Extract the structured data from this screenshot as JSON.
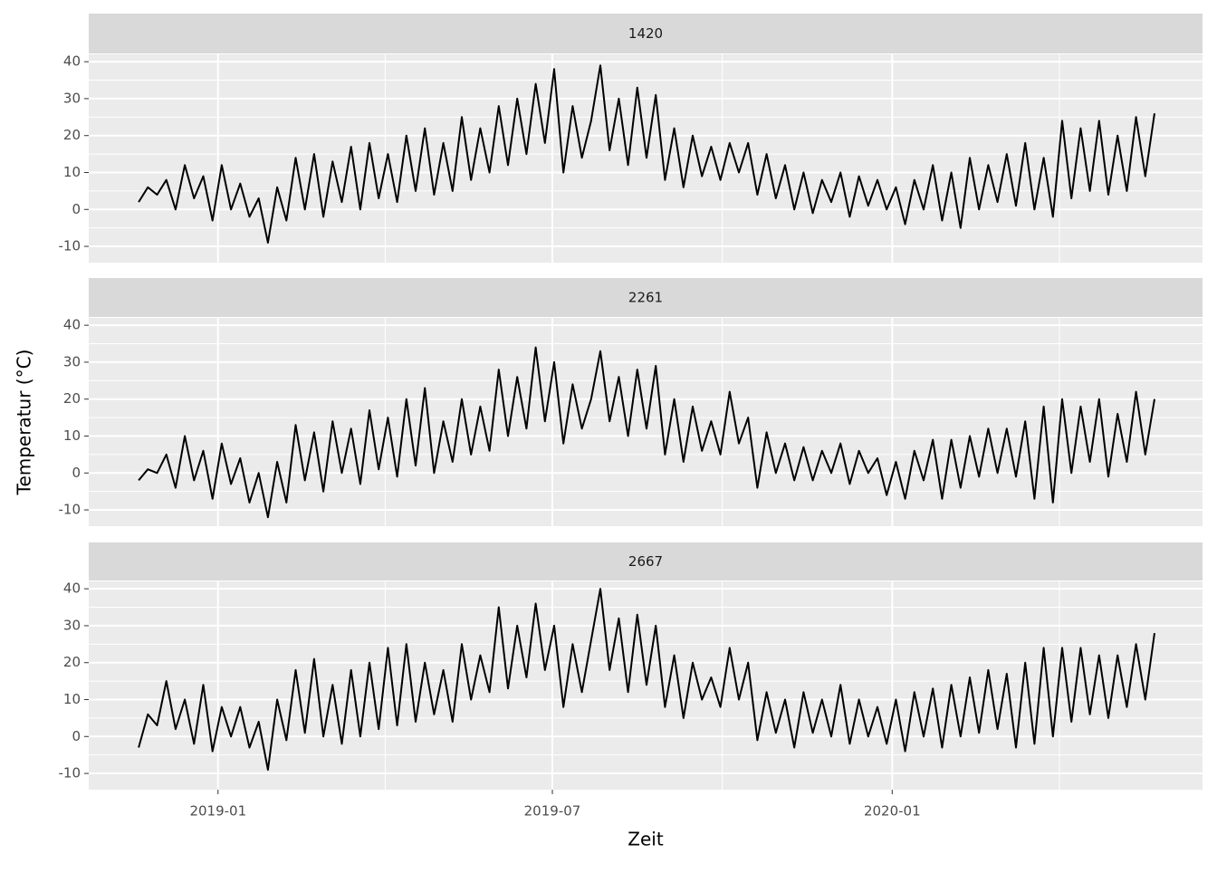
{
  "chart_data": {
    "type": "line",
    "xlabel": "Zeit",
    "ylabel": "Temperatur (°C)",
    "xlim": [
      "2018-10-23",
      "2020-06-17"
    ],
    "xticks": [
      "2019-01",
      "2019-07",
      "2020-01"
    ],
    "ylim": [
      -14.4,
      42
    ],
    "yticks": [
      -10,
      0,
      10,
      20,
      30,
      40
    ],
    "grid": true,
    "x": [
      "2018-11-19",
      "2018-11-24",
      "2018-11-29",
      "2018-12-04",
      "2018-12-09",
      "2018-12-14",
      "2018-12-19",
      "2018-12-24",
      "2018-12-29",
      "2019-01-03",
      "2019-01-08",
      "2019-01-13",
      "2019-01-18",
      "2019-01-23",
      "2019-01-28",
      "2019-02-02",
      "2019-02-07",
      "2019-02-12",
      "2019-02-17",
      "2019-02-22",
      "2019-02-27",
      "2019-03-04",
      "2019-03-09",
      "2019-03-14",
      "2019-03-19",
      "2019-03-24",
      "2019-03-29",
      "2019-04-03",
      "2019-04-08",
      "2019-04-13",
      "2019-04-18",
      "2019-04-23",
      "2019-04-28",
      "2019-05-03",
      "2019-05-08",
      "2019-05-13",
      "2019-05-18",
      "2019-05-23",
      "2019-05-28",
      "2019-06-02",
      "2019-06-07",
      "2019-06-12",
      "2019-06-17",
      "2019-06-22",
      "2019-06-27",
      "2019-07-02",
      "2019-07-07",
      "2019-07-12",
      "2019-07-17",
      "2019-07-22",
      "2019-07-27",
      "2019-08-01",
      "2019-08-06",
      "2019-08-11",
      "2019-08-16",
      "2019-08-21",
      "2019-08-26",
      "2019-08-31",
      "2019-09-05",
      "2019-09-10",
      "2019-09-15",
      "2019-09-20",
      "2019-09-25",
      "2019-09-30",
      "2019-10-05",
      "2019-10-10",
      "2019-10-15",
      "2019-10-20",
      "2019-10-25",
      "2019-10-30",
      "2019-11-04",
      "2019-11-09",
      "2019-11-14",
      "2019-11-19",
      "2019-11-24",
      "2019-11-29",
      "2019-12-04",
      "2019-12-09",
      "2019-12-14",
      "2019-12-19",
      "2019-12-24",
      "2019-12-29",
      "2020-01-03",
      "2020-01-08",
      "2020-01-13",
      "2020-01-18",
      "2020-01-23",
      "2020-01-28",
      "2020-02-02",
      "2020-02-07",
      "2020-02-12",
      "2020-02-17",
      "2020-02-22",
      "2020-02-27",
      "2020-03-03",
      "2020-03-08",
      "2020-03-13",
      "2020-03-18",
      "2020-03-23",
      "2020-03-28",
      "2020-04-02",
      "2020-04-07",
      "2020-04-12",
      "2020-04-17",
      "2020-04-22",
      "2020-04-27",
      "2020-05-02",
      "2020-05-07",
      "2020-05-12",
      "2020-05-17",
      "2020-05-22"
    ],
    "facets": [
      {
        "title": "1420",
        "color": "#000000",
        "values": [
          2,
          6,
          4,
          8,
          0,
          12,
          3,
          9,
          -3,
          12,
          0,
          7,
          -2,
          3,
          -9,
          6,
          -3,
          14,
          0,
          15,
          -2,
          13,
          2,
          17,
          0,
          18,
          3,
          15,
          2,
          20,
          5,
          22,
          4,
          18,
          5,
          25,
          8,
          22,
          10,
          28,
          12,
          30,
          15,
          34,
          18,
          38,
          10,
          28,
          14,
          24,
          39,
          16,
          30,
          12,
          33,
          14,
          31,
          8,
          22,
          6,
          20,
          9,
          17,
          8,
          18,
          10,
          18,
          4,
          15,
          3,
          12,
          0,
          10,
          -1,
          8,
          2,
          10,
          -2,
          9,
          1,
          8,
          0,
          6,
          -4,
          8,
          0,
          12,
          -3,
          10,
          -5,
          14,
          0,
          12,
          2,
          15,
          1,
          18,
          0,
          14,
          -2,
          24,
          3,
          22,
          5,
          24,
          4,
          20,
          5,
          25,
          9,
          26
        ]
      },
      {
        "title": "2261",
        "color": "#000000",
        "values": [
          -2,
          1,
          0,
          5,
          -4,
          10,
          -2,
          6,
          -7,
          8,
          -3,
          4,
          -8,
          0,
          -12,
          3,
          -8,
          13,
          -2,
          11,
          -5,
          14,
          0,
          12,
          -3,
          17,
          1,
          15,
          -1,
          20,
          2,
          23,
          0,
          14,
          3,
          20,
          5,
          18,
          6,
          28,
          10,
          26,
          12,
          34,
          14,
          30,
          8,
          24,
          12,
          20,
          33,
          14,
          26,
          10,
          28,
          12,
          29,
          5,
          20,
          3,
          18,
          6,
          14,
          5,
          22,
          8,
          15,
          -4,
          11,
          0,
          8,
          -2,
          7,
          -2,
          6,
          0,
          8,
          -3,
          6,
          0,
          4,
          -6,
          3,
          -7,
          6,
          -2,
          9,
          -7,
          9,
          -4,
          10,
          -1,
          12,
          0,
          12,
          -1,
          14,
          -7,
          18,
          -8,
          20,
          0,
          18,
          3,
          20,
          -1,
          16,
          3,
          22,
          5,
          20
        ]
      },
      {
        "title": "2667",
        "color": "#000000",
        "values": [
          -3,
          6,
          3,
          15,
          2,
          10,
          -2,
          14,
          -4,
          8,
          0,
          8,
          -3,
          4,
          -9,
          10,
          -1,
          18,
          1,
          21,
          0,
          14,
          -2,
          18,
          0,
          20,
          2,
          24,
          3,
          25,
          4,
          20,
          6,
          18,
          4,
          25,
          10,
          22,
          12,
          35,
          13,
          30,
          16,
          36,
          18,
          30,
          8,
          25,
          12,
          26,
          40,
          18,
          32,
          12,
          33,
          14,
          30,
          8,
          22,
          5,
          20,
          10,
          16,
          8,
          24,
          10,
          20,
          -1,
          12,
          1,
          10,
          -3,
          12,
          1,
          10,
          0,
          14,
          -2,
          10,
          0,
          8,
          -2,
          10,
          -4,
          12,
          0,
          13,
          -3,
          14,
          0,
          16,
          1,
          18,
          2,
          17,
          -3,
          20,
          -2,
          24,
          0,
          24,
          4,
          24,
          6,
          22,
          5,
          22,
          8,
          25,
          10,
          28
        ]
      }
    ]
  }
}
